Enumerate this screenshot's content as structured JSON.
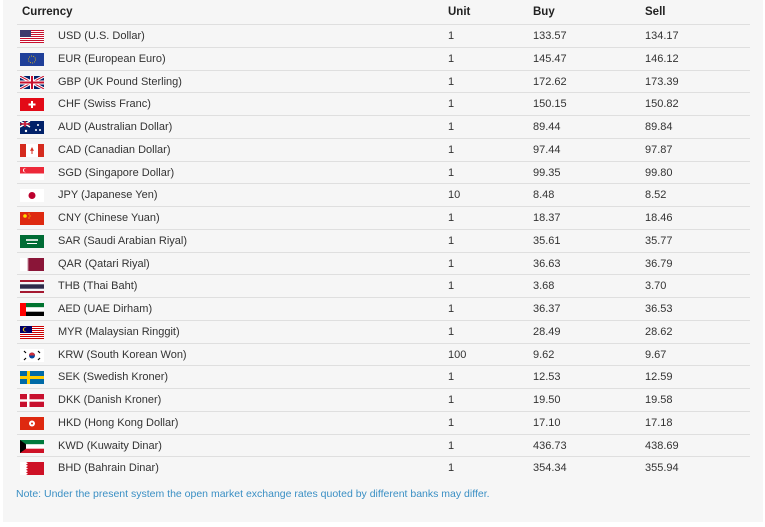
{
  "table": {
    "headers": {
      "currency": "Currency",
      "unit": "Unit",
      "buy": "Buy",
      "sell": "Sell"
    },
    "rows": [
      {
        "flag": "flag-us",
        "name": "USD (U.S. Dollar)",
        "unit": "1",
        "buy": "133.57",
        "sell": "134.17"
      },
      {
        "flag": "flag-eu",
        "name": "EUR (European Euro)",
        "unit": "1",
        "buy": "145.47",
        "sell": "146.12"
      },
      {
        "flag": "flag-gb",
        "name": "GBP (UK Pound Sterling)",
        "unit": "1",
        "buy": "172.62",
        "sell": "173.39"
      },
      {
        "flag": "flag-ch",
        "name": "CHF (Swiss Franc)",
        "unit": "1",
        "buy": "150.15",
        "sell": "150.82"
      },
      {
        "flag": "flag-au",
        "name": "AUD (Australian Dollar)",
        "unit": "1",
        "buy": "89.44",
        "sell": "89.84"
      },
      {
        "flag": "flag-ca",
        "name": "CAD (Canadian Dollar)",
        "unit": "1",
        "buy": "97.44",
        "sell": "97.87"
      },
      {
        "flag": "flag-sg",
        "name": "SGD (Singapore Dollar)",
        "unit": "1",
        "buy": "99.35",
        "sell": "99.80"
      },
      {
        "flag": "flag-jp",
        "name": "JPY (Japanese Yen)",
        "unit": "10",
        "buy": "8.48",
        "sell": "8.52"
      },
      {
        "flag": "flag-cn",
        "name": "CNY (Chinese Yuan)",
        "unit": "1",
        "buy": "18.37",
        "sell": "18.46"
      },
      {
        "flag": "flag-sa",
        "name": "SAR (Saudi Arabian Riyal)",
        "unit": "1",
        "buy": "35.61",
        "sell": "35.77"
      },
      {
        "flag": "flag-qa",
        "name": "QAR (Qatari Riyal)",
        "unit": "1",
        "buy": "36.63",
        "sell": "36.79"
      },
      {
        "flag": "flag-th",
        "name": "THB (Thai Baht)",
        "unit": "1",
        "buy": "3.68",
        "sell": "3.70"
      },
      {
        "flag": "flag-ae",
        "name": "AED (UAE Dirham)",
        "unit": "1",
        "buy": "36.37",
        "sell": "36.53"
      },
      {
        "flag": "flag-my",
        "name": "MYR (Malaysian Ringgit)",
        "unit": "1",
        "buy": "28.49",
        "sell": "28.62"
      },
      {
        "flag": "flag-kr",
        "name": "KRW (South Korean Won)",
        "unit": "100",
        "buy": "9.62",
        "sell": "9.67"
      },
      {
        "flag": "flag-se",
        "name": "SEK (Swedish Kroner)",
        "unit": "1",
        "buy": "12.53",
        "sell": "12.59"
      },
      {
        "flag": "flag-dk",
        "name": "DKK (Danish Kroner)",
        "unit": "1",
        "buy": "19.50",
        "sell": "19.58"
      },
      {
        "flag": "flag-hk",
        "name": "HKD (Hong Kong Dollar)",
        "unit": "1",
        "buy": "17.10",
        "sell": "17.18"
      },
      {
        "flag": "flag-kw",
        "name": "KWD (Kuwaity Dinar)",
        "unit": "1",
        "buy": "436.73",
        "sell": "438.69"
      },
      {
        "flag": "flag-bh",
        "name": "BHD (Bahrain Dinar)",
        "unit": "1",
        "buy": "354.34",
        "sell": "355.94"
      }
    ]
  },
  "note": "Note: Under the present system the open market exchange rates quoted by different banks may differ."
}
